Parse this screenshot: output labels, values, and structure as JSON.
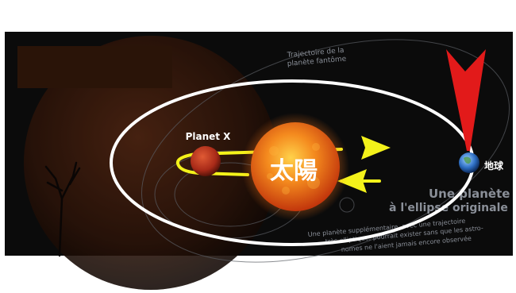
{
  "labels": {
    "planet_x": "Planet X",
    "sun": "太陽",
    "earth": "地球"
  },
  "background_text": {
    "trajectory": [
      "Trajectoire de la",
      "planète fantôme"
    ],
    "heading": [
      "Une planète",
      "à l'ellipse originale"
    ],
    "caption": [
      "Une planète supplémentaire, avec une trajectoire",
      "très elliptique, pourrait exister sans que les astro-",
      "nomes ne l'aient jamais encore observée"
    ]
  },
  "colors": {
    "background": "#0b0b0b",
    "orbit": "#ffffff",
    "arrows": "#f4f21a",
    "pointer": "#e21a1a",
    "sun": "#f0781e",
    "planet_x": "#b8321e",
    "label_box": "#2a1408"
  },
  "icons": {
    "pointer": "red-arrow-icon"
  }
}
